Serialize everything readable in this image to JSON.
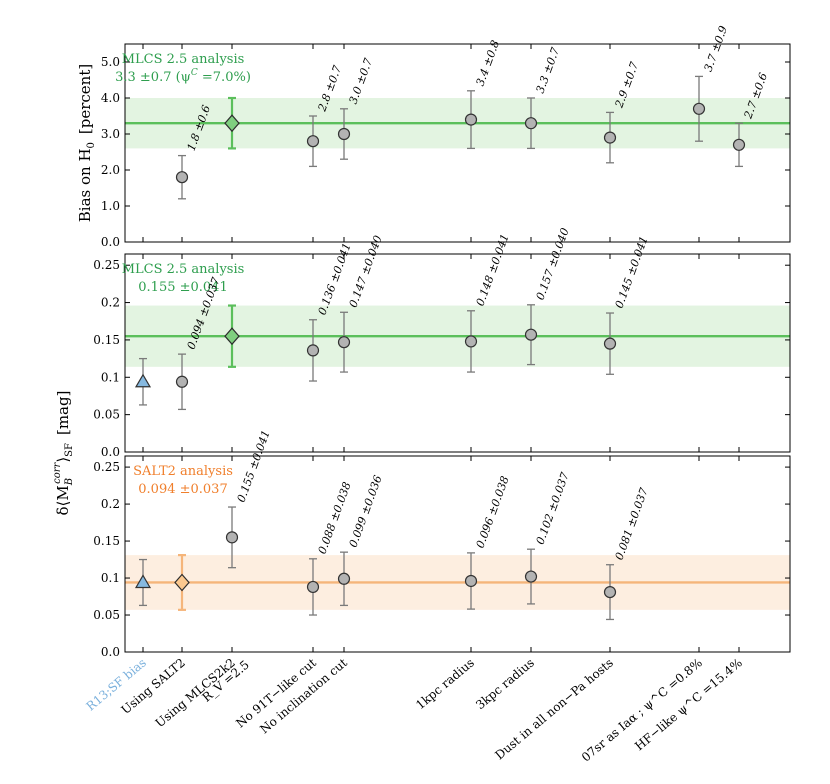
{
  "categories": [
    {
      "label": "R13;SF bias",
      "label2": "",
      "color": "#7ab0dc"
    },
    {
      "label": "Using SALT2",
      "label2": "",
      "color": "#000000"
    },
    {
      "label": "Using MLCS2k2",
      "label2": "R_V =2.5",
      "color": "#000000"
    },
    {
      "label": "No 91T−like cut",
      "label2": "",
      "color": "#000000"
    },
    {
      "label": "No inclination cut",
      "label2": "",
      "color": "#000000"
    },
    {
      "label": "1kpc radius",
      "label2": "",
      "color": "#000000"
    },
    {
      "label": "3kpc radius",
      "label2": "",
      "color": "#000000"
    },
    {
      "label": "Dust in all non−Pa hosts",
      "label2": "",
      "color": "#000000"
    },
    {
      "label": "07sr as Iaα ; ψ^C =0.8%",
      "label2": "",
      "color": "#000000"
    },
    {
      "label": "HF−like ψ^C =15.4%",
      "label2": "",
      "color": "#000000"
    }
  ],
  "colors": {
    "mlcs_line": "#5bbf5b",
    "mlcs_band": "#e3f4e1",
    "mlcs_marker": "#7fcf7f",
    "mlcs_text": "#2e9e4e",
    "salt_line": "#f5b57a",
    "salt_band": "#fdeee0",
    "salt_marker": "#fbc88f",
    "salt_text": "#f07f2c",
    "point_fill": "#b3b3b3",
    "triangle_fill": "#86b9e0",
    "error_bar": "#7a7a7a"
  },
  "chart_data": [
    {
      "type": "scatter",
      "id": "top",
      "ylabel": "Bias on H",
      "ylabel_sub": "0",
      "ylabel_unit": "[percent]",
      "ylim": [
        0,
        5.5
      ],
      "yticks": [
        "0.0",
        "1.0",
        "2.0",
        "3.0",
        "4.0",
        "5.0"
      ],
      "ytick_values": [
        0,
        1,
        2,
        3,
        4,
        5
      ],
      "reference": {
        "value": 3.3,
        "err": 0.7,
        "theme": "mlcs"
      },
      "legend": {
        "line1": "MLCS 2.5 analysis",
        "line2": "3.3 ±0.7 (ψ",
        "sup": "C",
        "tail": " =7.0%)",
        "theme": "mlcs"
      },
      "points": [
        {
          "cat": 1,
          "value": 1.8,
          "err": 0.6,
          "marker": "circle",
          "label": "1.8 ±0.6"
        },
        {
          "cat": 2,
          "value": 3.3,
          "err": 0.7,
          "marker": "diamond",
          "theme": "mlcs",
          "label": ""
        },
        {
          "cat": 3,
          "value": 2.8,
          "err": 0.7,
          "marker": "circle",
          "label": "2.8 ±0.7"
        },
        {
          "cat": 4,
          "value": 3.0,
          "err": 0.7,
          "marker": "circle",
          "label": "3.0 ±0.7"
        },
        {
          "cat": 5,
          "value": 3.4,
          "err": 0.8,
          "marker": "circle",
          "label": "3.4 ±0.8"
        },
        {
          "cat": 6,
          "value": 3.3,
          "err": 0.7,
          "marker": "circle",
          "label": "3.3 ±0.7"
        },
        {
          "cat": 7,
          "value": 2.9,
          "err": 0.7,
          "marker": "circle",
          "label": "2.9 ±0.7"
        },
        {
          "cat": 8,
          "value": 3.7,
          "err": 0.9,
          "marker": "circle",
          "label": "3.7 ±0.9"
        },
        {
          "cat": 9,
          "value": 2.7,
          "err": 0.6,
          "marker": "circle",
          "label": "2.7 ±0.6"
        }
      ]
    },
    {
      "type": "scatter",
      "id": "middle",
      "ylabel": "",
      "ylim": [
        0,
        0.265
      ],
      "yticks": [
        "0.0",
        "0.05",
        "0.1",
        "0.15",
        "0.2",
        "0.25"
      ],
      "ytick_values": [
        0,
        0.05,
        0.1,
        0.15,
        0.2,
        0.25
      ],
      "reference": {
        "value": 0.155,
        "err": 0.041,
        "theme": "mlcs"
      },
      "legend": {
        "line1": "MLCS 2.5 analysis",
        "line2": "0.155 ±0.041",
        "sup": "",
        "tail": "",
        "theme": "mlcs"
      },
      "points": [
        {
          "cat": 0,
          "value": 0.094,
          "err": 0.031,
          "marker": "triangle",
          "label": ""
        },
        {
          "cat": 1,
          "value": 0.094,
          "err": 0.037,
          "marker": "circle",
          "label": "0.094 ±0.037"
        },
        {
          "cat": 2,
          "value": 0.155,
          "err": 0.041,
          "marker": "diamond",
          "theme": "mlcs",
          "label": ""
        },
        {
          "cat": 3,
          "value": 0.136,
          "err": 0.041,
          "marker": "circle",
          "label": "0.136 ±0.041"
        },
        {
          "cat": 4,
          "value": 0.147,
          "err": 0.04,
          "marker": "circle",
          "label": "0.147 ±0.040"
        },
        {
          "cat": 5,
          "value": 0.148,
          "err": 0.041,
          "marker": "circle",
          "label": "0.148 ±0.041"
        },
        {
          "cat": 6,
          "value": 0.157,
          "err": 0.04,
          "marker": "circle",
          "label": "0.157 ±0.040"
        },
        {
          "cat": 7,
          "value": 0.145,
          "err": 0.041,
          "marker": "circle",
          "label": "0.145 ±0.041"
        }
      ]
    },
    {
      "type": "scatter",
      "id": "bottom",
      "ylabel": "",
      "ylim": [
        0,
        0.265
      ],
      "yticks": [
        "0.0",
        "0.05",
        "0.1",
        "0.15",
        "0.2",
        "0.25"
      ],
      "ytick_values": [
        0,
        0.05,
        0.1,
        0.15,
        0.2,
        0.25
      ],
      "reference": {
        "value": 0.094,
        "err": 0.037,
        "theme": "salt"
      },
      "legend": {
        "line1": "SALT2 analysis",
        "line2": "0.094 ±0.037",
        "sup": "",
        "tail": "",
        "theme": "salt"
      },
      "points": [
        {
          "cat": 0,
          "value": 0.094,
          "err": 0.031,
          "marker": "triangle",
          "label": ""
        },
        {
          "cat": 1,
          "value": 0.094,
          "err": 0.037,
          "marker": "diamond",
          "theme": "salt",
          "label": ""
        },
        {
          "cat": 2,
          "value": 0.155,
          "err": 0.041,
          "marker": "circle",
          "label": "0.155 ±0.041"
        },
        {
          "cat": 3,
          "value": 0.088,
          "err": 0.038,
          "marker": "circle",
          "label": "0.088 ±0.038"
        },
        {
          "cat": 4,
          "value": 0.099,
          "err": 0.036,
          "marker": "circle",
          "label": "0.099 ±0.036"
        },
        {
          "cat": 5,
          "value": 0.096,
          "err": 0.038,
          "marker": "circle",
          "label": "0.096 ±0.038"
        },
        {
          "cat": 6,
          "value": 0.102,
          "err": 0.037,
          "marker": "circle",
          "label": "0.102 ±0.037"
        },
        {
          "cat": 7,
          "value": 0.081,
          "err": 0.037,
          "marker": "circle",
          "label": "0.081 ±0.037"
        }
      ]
    }
  ],
  "shared_ylabel": {
    "prefix": "δ⟨M",
    "sub": "B",
    "sup": "corr",
    "suffix": "⟩",
    "suffix_sub": "SF",
    "unit": "[mag]"
  }
}
